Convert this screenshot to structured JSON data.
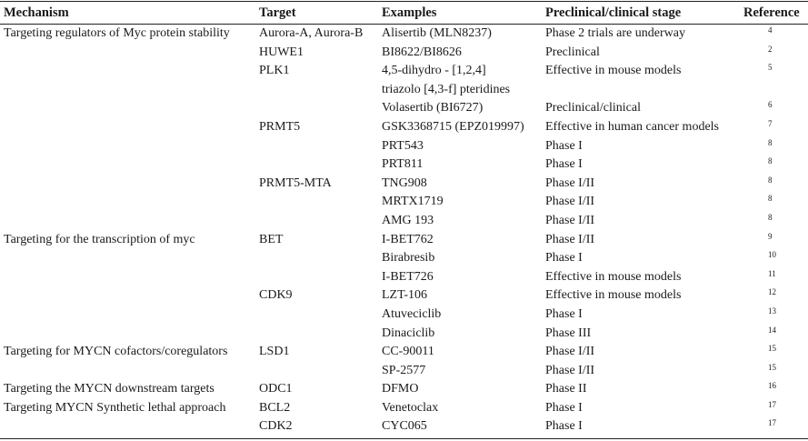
{
  "headers": {
    "mechanism": "Mechanism",
    "target": "Target",
    "examples": "Examples",
    "stage": "Preclinical/clinical stage",
    "reference": "Reference"
  },
  "rows": [
    {
      "mechanism": "Targeting regulators of Myc protein stability",
      "target": "Aurora-A, Aurora-B",
      "example": "Alisertib (MLN8237)",
      "stage": "Phase 2 trials are underway",
      "ref": "4"
    },
    {
      "mechanism": "",
      "target": "HUWE1",
      "example": "BI8622/BI8626",
      "stage": "Preclinical",
      "ref": "2"
    },
    {
      "mechanism": "",
      "target": "PLK1",
      "example": "4,5-dihydro - [1,2,4]",
      "stage": "Effective in mouse models",
      "ref": "5"
    },
    {
      "mechanism": "",
      "target": "",
      "example": "triazolo [4,3-f] pteridines",
      "stage": "",
      "ref": ""
    },
    {
      "mechanism": "",
      "target": "",
      "example": "Volasertib (BI6727)",
      "stage": "Preclinical/clinical",
      "ref": "6"
    },
    {
      "mechanism": "",
      "target": "PRMT5",
      "example": "GSK3368715 (EPZ019997)",
      "stage": "Effective in human cancer models",
      "ref": "7"
    },
    {
      "mechanism": "",
      "target": "",
      "example": "PRT543",
      "stage": "Phase I",
      "ref": "8"
    },
    {
      "mechanism": "",
      "target": "",
      "example": "PRT811",
      "stage": "Phase I",
      "ref": "8"
    },
    {
      "mechanism": "",
      "target": "PRMT5-MTA",
      "example": "TNG908",
      "stage": "Phase I/II",
      "ref": "8"
    },
    {
      "mechanism": "",
      "target": "",
      "example": "MRTX1719",
      "stage": "Phase I/II",
      "ref": "8"
    },
    {
      "mechanism": "",
      "target": "",
      "example": "AMG 193",
      "stage": "Phase I/II",
      "ref": "8"
    },
    {
      "mechanism": "Targeting for the transcription of myc",
      "target": "BET",
      "example": "I-BET762",
      "stage": "Phase I/II",
      "ref": "9"
    },
    {
      "mechanism": "",
      "target": "",
      "example": "Birabresib",
      "stage": "Phase I",
      "ref": "10"
    },
    {
      "mechanism": "",
      "target": "",
      "example": "I-BET726",
      "stage": "Effective in mouse models",
      "ref": "11"
    },
    {
      "mechanism": "",
      "target": "CDK9",
      "example": "LZT-106",
      "stage": "Effective in mouse models",
      "ref": "12"
    },
    {
      "mechanism": "",
      "target": "",
      "example": "Atuveciclib",
      "stage": "Phase I",
      "ref": "13"
    },
    {
      "mechanism": "",
      "target": "",
      "example": "Dinaciclib",
      "stage": "Phase III",
      "ref": "14"
    },
    {
      "mechanism": "Targeting for MYCN cofactors/coregulators",
      "target": "LSD1",
      "example": "CC-90011",
      "stage": "Phase I/II",
      "ref": "15"
    },
    {
      "mechanism": "",
      "target": "",
      "example": "SP-2577",
      "stage": "Phase I/II",
      "ref": "15"
    },
    {
      "mechanism": "Targeting the MYCN downstream targets",
      "target": "ODC1",
      "example": "DFMO",
      "stage": "Phase II",
      "ref": "16"
    },
    {
      "mechanism": "Targeting MYCN Synthetic lethal approach",
      "target": "BCL2",
      "example": "Venetoclax",
      "stage": "Phase I",
      "ref": "17"
    },
    {
      "mechanism": "",
      "target": "CDK2",
      "example": "CYC065",
      "stage": "Phase I",
      "ref": "17"
    }
  ]
}
